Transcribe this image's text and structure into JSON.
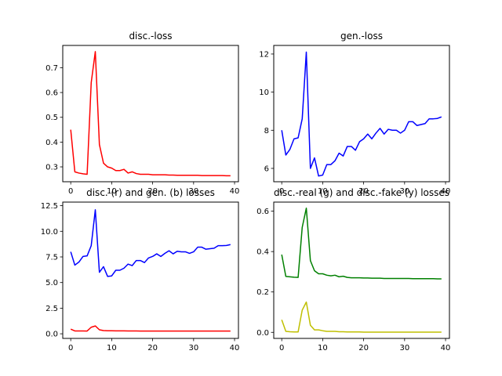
{
  "chart_data": [
    {
      "type": "line",
      "title": "disc.-loss",
      "x": [
        0,
        1,
        2,
        3,
        4,
        5,
        6,
        7,
        8,
        9,
        10,
        11,
        12,
        13,
        14,
        15,
        16,
        17,
        18,
        19,
        20,
        21,
        22,
        23,
        24,
        25,
        26,
        27,
        28,
        29,
        30,
        31,
        32,
        33,
        34,
        35,
        36,
        37,
        38,
        39
      ],
      "series": [
        {
          "color": "#ff0000",
          "values": [
            0.45,
            0.28,
            0.275,
            0.272,
            0.27,
            0.64,
            0.765,
            0.39,
            0.315,
            0.3,
            0.295,
            0.285,
            0.285,
            0.29,
            0.275,
            0.28,
            0.273,
            0.27,
            0.27,
            0.27,
            0.268,
            0.268,
            0.268,
            0.268,
            0.267,
            0.267,
            0.266,
            0.266,
            0.266,
            0.266,
            0.266,
            0.266,
            0.265,
            0.265,
            0.265,
            0.265,
            0.265,
            0.265,
            0.264,
            0.264
          ]
        }
      ],
      "xlim": [
        -1.95,
        40.95
      ],
      "ylim": [
        0.24,
        0.79
      ],
      "xticks": [
        0,
        10,
        20,
        30,
        40
      ],
      "yticks": [
        0.3,
        0.4,
        0.5,
        0.6,
        0.7
      ],
      "xtick_labels": [
        "0",
        "10",
        "20",
        "30",
        "40"
      ],
      "ytick_labels": [
        "0.3",
        "0.4",
        "0.5",
        "0.6",
        "0.7"
      ]
    },
    {
      "type": "line",
      "title": "gen.-loss",
      "x": [
        0,
        1,
        2,
        3,
        4,
        5,
        6,
        7,
        8,
        9,
        10,
        11,
        12,
        13,
        14,
        15,
        16,
        17,
        18,
        19,
        20,
        21,
        22,
        23,
        24,
        25,
        26,
        27,
        28,
        29,
        30,
        31,
        32,
        33,
        34,
        35,
        36,
        37,
        38,
        39
      ],
      "series": [
        {
          "color": "#0000ff",
          "values": [
            8.0,
            6.7,
            7.0,
            7.55,
            7.6,
            8.6,
            12.1,
            6.0,
            6.55,
            5.6,
            5.65,
            6.2,
            6.2,
            6.4,
            6.8,
            6.65,
            7.15,
            7.15,
            6.95,
            7.4,
            7.55,
            7.8,
            7.55,
            7.85,
            8.1,
            7.8,
            8.05,
            8.0,
            8.0,
            7.85,
            8.0,
            8.45,
            8.45,
            8.25,
            8.3,
            8.35,
            8.6,
            8.6,
            8.62,
            8.7
          ]
        }
      ],
      "xlim": [
        -1.95,
        40.95
      ],
      "ylim": [
        5.3,
        12.45
      ],
      "xticks": [
        0,
        10,
        20,
        30,
        40
      ],
      "yticks": [
        6,
        8,
        10,
        12
      ],
      "xtick_labels": [
        "0",
        "10",
        "20",
        "30",
        "40"
      ],
      "ytick_labels": [
        "6",
        "8",
        "10",
        "12"
      ]
    },
    {
      "type": "line",
      "title": "disc. (r) and gen. (b) losses",
      "x": [
        0,
        1,
        2,
        3,
        4,
        5,
        6,
        7,
        8,
        9,
        10,
        11,
        12,
        13,
        14,
        15,
        16,
        17,
        18,
        19,
        20,
        21,
        22,
        23,
        24,
        25,
        26,
        27,
        28,
        29,
        30,
        31,
        32,
        33,
        34,
        35,
        36,
        37,
        38,
        39
      ],
      "series": [
        {
          "color": "#0000ff",
          "values": [
            8.0,
            6.7,
            7.0,
            7.55,
            7.6,
            8.6,
            12.1,
            6.0,
            6.55,
            5.6,
            5.65,
            6.2,
            6.2,
            6.4,
            6.8,
            6.65,
            7.15,
            7.15,
            6.95,
            7.4,
            7.55,
            7.8,
            7.55,
            7.85,
            8.1,
            7.8,
            8.05,
            8.0,
            8.0,
            7.85,
            8.0,
            8.45,
            8.45,
            8.25,
            8.3,
            8.35,
            8.6,
            8.6,
            8.62,
            8.7
          ]
        },
        {
          "color": "#ff0000",
          "values": [
            0.45,
            0.28,
            0.275,
            0.272,
            0.27,
            0.64,
            0.765,
            0.39,
            0.315,
            0.3,
            0.295,
            0.285,
            0.285,
            0.29,
            0.275,
            0.28,
            0.273,
            0.27,
            0.27,
            0.27,
            0.268,
            0.268,
            0.268,
            0.268,
            0.267,
            0.267,
            0.266,
            0.266,
            0.266,
            0.266,
            0.266,
            0.266,
            0.265,
            0.265,
            0.265,
            0.265,
            0.265,
            0.265,
            0.264,
            0.264
          ]
        }
      ],
      "xlim": [
        -1.95,
        40.95
      ],
      "ylim": [
        -0.45,
        12.85
      ],
      "xticks": [
        0,
        10,
        20,
        30,
        40
      ],
      "yticks": [
        0.0,
        2.5,
        5.0,
        7.5,
        10.0,
        12.5
      ],
      "xtick_labels": [
        "0",
        "10",
        "20",
        "30",
        "40"
      ],
      "ytick_labels": [
        "0.0",
        "2.5",
        "5.0",
        "7.5",
        "10.0",
        "12.5"
      ]
    },
    {
      "type": "line",
      "title": "disc.-real (g) and disc.-fake (y) losses",
      "x": [
        0,
        1,
        2,
        3,
        4,
        5,
        6,
        7,
        8,
        9,
        10,
        11,
        12,
        13,
        14,
        15,
        16,
        17,
        18,
        19,
        20,
        21,
        22,
        23,
        24,
        25,
        26,
        27,
        28,
        29,
        30,
        31,
        32,
        33,
        34,
        35,
        36,
        37,
        38,
        39
      ],
      "series": [
        {
          "color": "#008000",
          "values": [
            0.385,
            0.277,
            0.275,
            0.273,
            0.272,
            0.52,
            0.615,
            0.355,
            0.305,
            0.29,
            0.29,
            0.283,
            0.28,
            0.283,
            0.275,
            0.278,
            0.272,
            0.27,
            0.27,
            0.27,
            0.269,
            0.269,
            0.268,
            0.268,
            0.268,
            0.267,
            0.267,
            0.267,
            0.267,
            0.267,
            0.267,
            0.267,
            0.266,
            0.266,
            0.266,
            0.266,
            0.266,
            0.266,
            0.265,
            0.265
          ]
        },
        {
          "color": "#bfbf00",
          "values": [
            0.062,
            0.005,
            0.003,
            0.002,
            0.002,
            0.11,
            0.15,
            0.035,
            0.012,
            0.012,
            0.008,
            0.005,
            0.005,
            0.005,
            0.003,
            0.003,
            0.002,
            0.002,
            0.002,
            0.002,
            0.001,
            0.001,
            0.001,
            0.001,
            0.001,
            0.001,
            0.001,
            0.001,
            0.001,
            0.001,
            0.001,
            0.001,
            0.001,
            0.001,
            0.001,
            0.001,
            0.001,
            0.001,
            0.001,
            0.001
          ]
        }
      ],
      "xlim": [
        -1.95,
        40.95
      ],
      "ylim": [
        -0.03,
        0.645
      ],
      "xticks": [
        0,
        10,
        20,
        30,
        40
      ],
      "yticks": [
        0.0,
        0.2,
        0.4,
        0.6
      ],
      "xtick_labels": [
        "0",
        "10",
        "20",
        "30",
        "40"
      ],
      "ytick_labels": [
        "0.0",
        "0.2",
        "0.4",
        "0.6"
      ]
    }
  ]
}
